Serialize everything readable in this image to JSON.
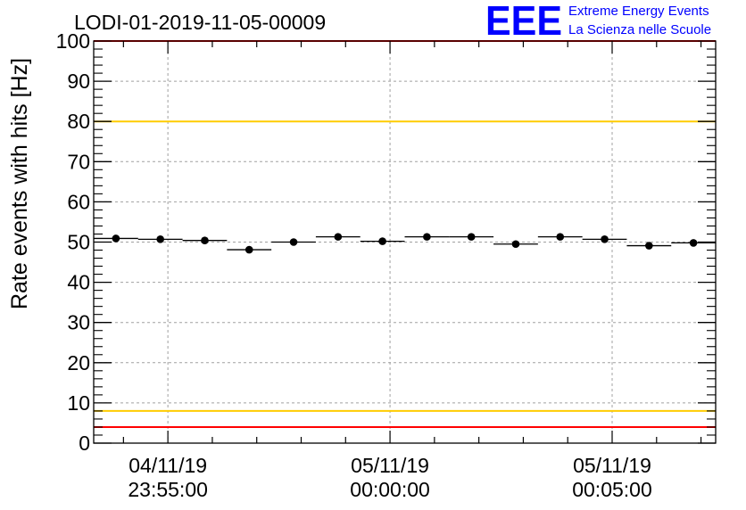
{
  "chart_data": {
    "type": "scatter",
    "title": "LODI-01-2019-11-05-00009",
    "xlabel": "",
    "ylabel": "Rate events with hits [Hz]",
    "ylim": [
      0,
      100
    ],
    "xlim_minutes": [
      -6.67,
      7.33
    ],
    "y_ticks": [
      "0",
      "10",
      "20",
      "30",
      "40",
      "50",
      "60",
      "70",
      "80",
      "90",
      "100"
    ],
    "x_ticks": [
      {
        "minute": -5,
        "date": "04/11/19",
        "time": "23:55:00"
      },
      {
        "minute": 0,
        "date": "05/11/19",
        "time": "00:00:00"
      },
      {
        "minute": 5,
        "date": "05/11/19",
        "time": "00:05:00"
      }
    ],
    "bin_width_minutes": 1,
    "series": [
      {
        "name": "rate",
        "x_minutes": [
          -6.17,
          -5.17,
          -4.17,
          -3.17,
          -2.17,
          -1.17,
          -0.17,
          0.83,
          1.83,
          2.83,
          3.83,
          4.83,
          5.83,
          6.83
        ],
        "values": [
          50.9,
          50.7,
          50.4,
          48.1,
          50.0,
          51.3,
          50.2,
          51.3,
          51.3,
          49.5,
          51.3,
          50.7,
          49.1,
          49.8
        ]
      }
    ],
    "reference_lines": [
      {
        "name": "upper-alarm",
        "value": 100,
        "color": "#ff0000"
      },
      {
        "name": "upper-warning",
        "value": 80,
        "color": "#ffcc00"
      },
      {
        "name": "lower-warning",
        "value": 8,
        "color": "#ffcc00"
      },
      {
        "name": "lower-alarm",
        "value": 4,
        "color": "#ff0000"
      }
    ],
    "grid": true,
    "logo": {
      "mark": "EEE",
      "line1": "Extreme Energy Events",
      "line2": "La Scienza nelle Scuole",
      "color": "#0000ff"
    }
  }
}
